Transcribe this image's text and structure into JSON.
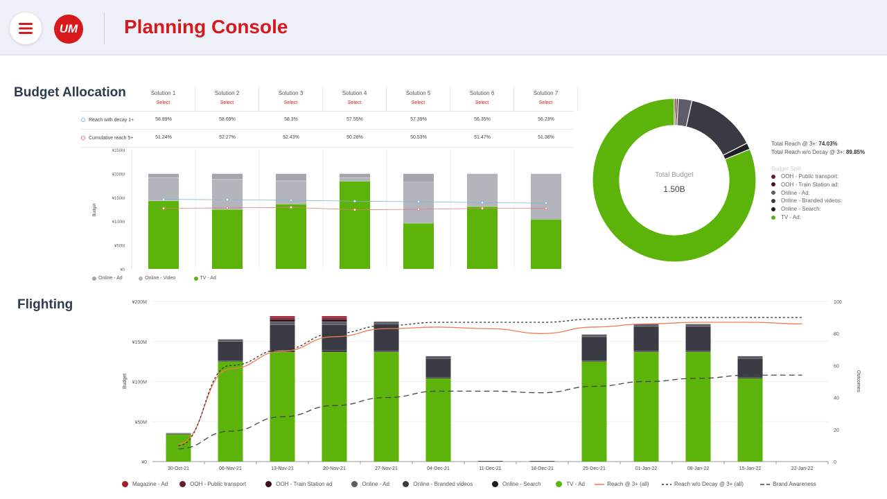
{
  "header": {
    "menu_icon": "hamburger-menu-icon",
    "logo_text": "UM",
    "title": "Planning Console",
    "accent": "#d7191c"
  },
  "budget_allocation": {
    "title": "Budget Allocation",
    "solutions": [
      {
        "name": "Solution 1",
        "select": "Select",
        "reach_decay": "58.89%",
        "cum_reach": "51.24%"
      },
      {
        "name": "Solution 2",
        "select": "Select",
        "reach_decay": "58.69%",
        "cum_reach": "52.27%"
      },
      {
        "name": "Solution 3",
        "select": "Select",
        "reach_decay": "58.3%",
        "cum_reach": "52.43%"
      },
      {
        "name": "Solution 4",
        "select": "Select",
        "reach_decay": "57.55%",
        "cum_reach": "50.28%"
      },
      {
        "name": "Solution 5",
        "select": "Select",
        "reach_decay": "57.39%",
        "cum_reach": "50.53%"
      },
      {
        "name": "Solution 6",
        "select": "Select",
        "reach_decay": "56.35%",
        "cum_reach": "51.47%"
      },
      {
        "name": "Solution 7",
        "select": "Select",
        "reach_decay": "56.23%",
        "cum_reach": "51.36%"
      }
    ],
    "metrics": {
      "reach_decay_label": "Reach with decay 1+",
      "cum_reach_label": "Cumulative reach 5+",
      "reach_decay_color": "#7fb8d6",
      "cum_reach_color": "#e07a7a"
    },
    "chart_data": {
      "type": "bar",
      "stacked": true,
      "categories": [
        "Solution 1",
        "Solution 2",
        "Solution 3",
        "Solution 4",
        "Solution 5",
        "Solution 6",
        "Solution 7"
      ],
      "ylabel": "Budget",
      "ylim": [
        0,
        250
      ],
      "yticks": [
        "¥0",
        "¥50M",
        "¥100M",
        "¥150M",
        "¥200M",
        "¥250M"
      ],
      "series": [
        {
          "name": "TV - Ad",
          "color": "#5cb30a",
          "values": [
            143,
            125,
            136,
            184,
            96,
            131,
            104
          ]
        },
        {
          "name": "Online - Video",
          "color": "#b4b4bd",
          "values": [
            48,
            63,
            49,
            7,
            86,
            69,
            96
          ]
        },
        {
          "name": "Online - Ad",
          "color": "#a5a5ae",
          "values": [
            9,
            12,
            15,
            9,
            18,
            0,
            0
          ]
        }
      ],
      "lines": [
        {
          "name": "Reach with decay 1+",
          "color": "#7fb8d6",
          "values": [
            146,
            145,
            144,
            142,
            141,
            139,
            138
          ]
        },
        {
          "name": "Cumulative reach 5+",
          "color": "#e07a7a",
          "values": [
            127,
            128,
            129,
            124,
            125,
            127,
            127
          ]
        }
      ],
      "legend": [
        {
          "name": "Online - Ad",
          "color": "#a5a5ae"
        },
        {
          "name": "Online - Video",
          "color": "#b4b4bd"
        },
        {
          "name": "TV - Ad",
          "color": "#5cb30a"
        }
      ]
    }
  },
  "donut": {
    "center_label": "Total Budget",
    "center_value": "1.50B",
    "total_reach_label": "Total Reach @ 3+:",
    "total_reach_value": "74.03%",
    "total_reach_wo_label": "Total Reach w/o Decay @ 3+:",
    "total_reach_wo_value": "89.85%",
    "split_label": "Budget Split",
    "chart_data": {
      "type": "pie",
      "donut": true,
      "slices": [
        {
          "name": "OOH - Public transport:",
          "color": "#6b1a2c",
          "value": 0.4
        },
        {
          "name": "OOH - Train Station ad:",
          "color": "#4d1220",
          "value": 0.4
        },
        {
          "name": "Online - Ad:",
          "color": "#5c5d66",
          "value": 2.7
        },
        {
          "name": "Online - Branded videos:",
          "color": "#3a3a44",
          "value": 14.0
        },
        {
          "name": "Online - Search:",
          "color": "#1e1e24",
          "value": 1.3
        },
        {
          "name": "TV - Ad:",
          "color": "#5cb30a",
          "value": 81.2
        }
      ]
    }
  },
  "flighting": {
    "title": "Flighting",
    "chart_data": {
      "type": "bar",
      "stacked": true,
      "categories": [
        "30-Oct-21",
        "06-Nov-21",
        "13-Nov-21",
        "20-Nov-21",
        "27-Nov-21",
        "04-Dec-21",
        "11-Dec-21",
        "18-Dec-21",
        "25-Dec-21",
        "01-Jan-22",
        "08-Jan-22",
        "15-Jan-22",
        "22-Jan-22"
      ],
      "ylabel": "Budget",
      "y2label": "Outcomes",
      "ylim": [
        0,
        200
      ],
      "y2lim": [
        0,
        100
      ],
      "yticks": [
        "¥0",
        "¥50M",
        "¥100M",
        "¥150M",
        "¥200M"
      ],
      "y2ticks": [
        "0",
        "20",
        "40",
        "60",
        "80",
        "100"
      ],
      "series": [
        {
          "name": "TV - Ad",
          "color": "#5cb30a",
          "values": [
            34,
            125,
            137,
            137,
            137,
            104,
            0,
            0,
            125,
            137,
            137,
            104,
            0
          ]
        },
        {
          "name": "Online - Search",
          "color": "#1e1e24",
          "values": [
            0,
            1,
            2,
            2,
            1,
            1,
            0,
            0,
            1,
            1,
            1,
            1,
            0
          ]
        },
        {
          "name": "Online - Branded videos",
          "color": "#3a3a44",
          "values": [
            1,
            24,
            32,
            32,
            34,
            24,
            1,
            1,
            30,
            31,
            31,
            24,
            0
          ]
        },
        {
          "name": "Online - Ad",
          "color": "#5c5d66",
          "values": [
            1,
            3,
            4,
            4,
            3,
            3,
            0,
            0,
            3,
            3,
            3,
            3,
            0
          ]
        },
        {
          "name": "OOH - Train Station ad",
          "color": "#3d0f1a",
          "values": [
            0,
            0,
            3,
            3,
            0,
            0,
            0,
            0,
            0,
            0,
            0,
            0,
            0
          ]
        },
        {
          "name": "OOH - Public transport",
          "color": "#6b1a2c",
          "values": [
            0,
            0,
            2,
            2,
            0,
            0,
            0,
            0,
            0,
            0,
            0,
            0,
            0
          ]
        },
        {
          "name": "Magazine - Ad",
          "color": "#a81d2c",
          "values": [
            0,
            0,
            2,
            2,
            0,
            0,
            0,
            0,
            0,
            0,
            0,
            0,
            0
          ]
        }
      ],
      "lines": [
        {
          "name": "Reach @ 3+ (all)",
          "color": "#f07a4d",
          "dash": "",
          "values": [
            11,
            58,
            69,
            78,
            83,
            84,
            83,
            80,
            84,
            86,
            87,
            87,
            86
          ]
        },
        {
          "name": "Reach w/o Decay @ 3+ (all)",
          "color": "#333333",
          "dash": "3,3",
          "values": [
            10,
            60,
            70,
            80,
            85,
            87,
            87,
            87,
            89,
            90,
            90,
            90,
            90
          ]
        },
        {
          "name": "Brand Awareness",
          "color": "#444444",
          "dash": "8,5",
          "values": [
            8,
            19,
            28,
            35,
            40,
            44,
            44,
            43,
            47,
            50,
            52,
            54,
            54
          ]
        }
      ],
      "legend": [
        {
          "name": "Magazine - Ad",
          "kind": "dot",
          "color": "#a81d2c"
        },
        {
          "name": "OOH - Public transport",
          "kind": "dot",
          "color": "#6b1a2c"
        },
        {
          "name": "OOH - Train Station ad",
          "kind": "dot",
          "color": "#3d0f1a"
        },
        {
          "name": "Online - Ad",
          "kind": "dot",
          "color": "#5c5d66"
        },
        {
          "name": "Online - Branded videos",
          "kind": "dot",
          "color": "#3a3a44"
        },
        {
          "name": "Online - Search",
          "kind": "dot",
          "color": "#1e1e24"
        },
        {
          "name": "TV - Ad",
          "kind": "dot",
          "color": "#5cb30a"
        },
        {
          "name": "Reach @ 3+ (all)",
          "kind": "line",
          "color": "#f07a4d",
          "dash": ""
        },
        {
          "name": "Reach w/o Decay @ 3+ (all)",
          "kind": "line",
          "color": "#333333",
          "dash": "3,3"
        },
        {
          "name": "Brand Awareness",
          "kind": "line",
          "color": "#444444",
          "dash": "6,3"
        }
      ]
    }
  }
}
